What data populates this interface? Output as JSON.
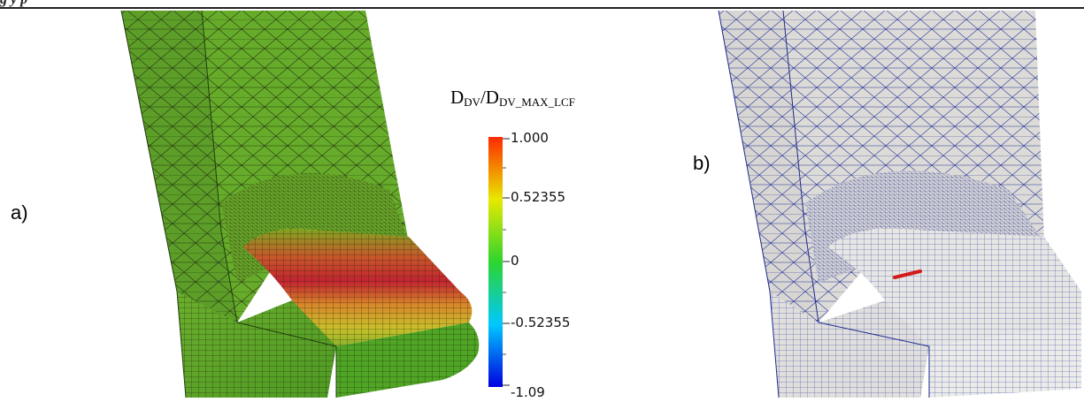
{
  "caption_fragment": "g             y                        p",
  "panel_labels": {
    "a": "a)",
    "b": "b)"
  },
  "colorbar": {
    "title_main": "D",
    "title_sub1": "DV",
    "title_slash": "/D",
    "title_sub2": "DV_MAX_LCF",
    "ticks": [
      "1.000",
      "0.52355",
      "0",
      "-0.52355",
      "-1.09"
    ],
    "colormap": [
      "#0000e0",
      "#00c8ff",
      "#2ed52e",
      "#e8e800",
      "#ff2a00"
    ]
  },
  "colors": {
    "mesh_green": "#5ea62a",
    "mesh_red": "#c7282a",
    "mesh_grey": "#d6d6d4",
    "mesh_lines_a": "#1a2a10",
    "mesh_lines_b": "#1e2a8c",
    "marker": "#d41a1a"
  }
}
